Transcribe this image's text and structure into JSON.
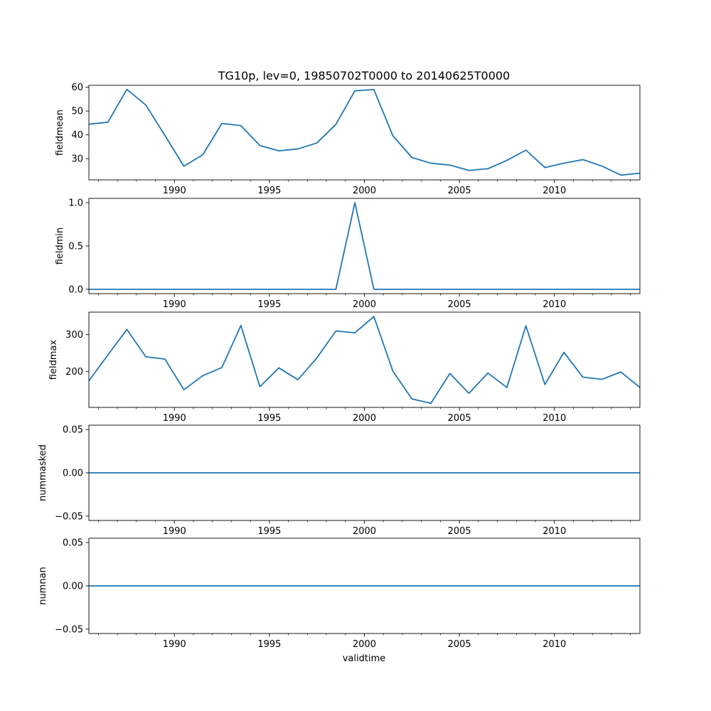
{
  "title": "TG10p, lev=0, 19850702T0000 to 20140625T0000",
  "xlabel": "validtime",
  "line_color": "#1f77b4",
  "chart_data": {
    "type": "line",
    "x": [
      1985.5,
      1986.5,
      1987.5,
      1988.5,
      1989.5,
      1990.5,
      1991.5,
      1992.5,
      1993.5,
      1994.5,
      1995.5,
      1996.5,
      1997.5,
      1998.5,
      1999.5,
      2000.5,
      2001.5,
      2002.5,
      2003.5,
      2004.5,
      2005.5,
      2006.5,
      2007.5,
      2008.5,
      2009.5,
      2010.5,
      2011.5,
      2012.5,
      2013.5,
      2014.5
    ],
    "xlim": [
      1985.5,
      2014.5
    ],
    "xticks": [
      1990,
      1995,
      2000,
      2005,
      2010
    ],
    "xtick_labels": [
      "1990",
      "1995",
      "2000",
      "2005",
      "2010"
    ],
    "panels": [
      {
        "name": "fieldmean",
        "ylabel": "fieldmean",
        "ylim": [
          21.1,
          60.8
        ],
        "yticks": [
          30,
          40,
          50,
          60
        ],
        "ytick_labels": [
          "30",
          "40",
          "50",
          "60"
        ],
        "values": [
          44.5,
          45.3,
          59.1,
          52.5,
          39.8,
          26.8,
          31.7,
          44.8,
          43.9,
          35.5,
          33.3,
          34.1,
          36.6,
          44.4,
          58.5,
          59.0,
          39.6,
          30.5,
          28.1,
          27.3,
          25.1,
          25.8,
          29.3,
          33.6,
          26.3,
          28.1,
          29.6,
          26.9,
          23.1,
          23.9
        ]
      },
      {
        "name": "fieldmin",
        "ylabel": "fieldmin",
        "ylim": [
          -0.05,
          1.05
        ],
        "yticks": [
          0.0,
          0.5,
          1.0
        ],
        "ytick_labels": [
          "0.0",
          "0.5",
          "1.0"
        ],
        "values": [
          0,
          0,
          0,
          0,
          0,
          0,
          0,
          0,
          0,
          0,
          0,
          0,
          0,
          0,
          1.0,
          0,
          0,
          0,
          0,
          0,
          0,
          0,
          0,
          0,
          0,
          0,
          0,
          0,
          0,
          0
        ]
      },
      {
        "name": "fieldmax",
        "ylabel": "fieldmax",
        "ylim": [
          103,
          361
        ],
        "yticks": [
          200,
          300
        ],
        "ytick_labels": [
          "200",
          "300"
        ],
        "values": [
          175,
          245,
          314,
          240,
          234,
          151,
          189,
          211,
          325,
          159,
          210,
          178,
          237,
          310,
          305,
          349,
          201,
          126,
          114,
          195,
          141,
          196,
          157,
          324,
          165,
          252,
          185,
          179,
          199,
          157
        ]
      },
      {
        "name": "nummasked",
        "ylabel": "nummasked",
        "ylim": [
          -0.055,
          0.055
        ],
        "yticks": [
          -0.05,
          0.0,
          0.05
        ],
        "ytick_labels": [
          "−0.05",
          "0.00",
          "0.05"
        ],
        "values": [
          0,
          0,
          0,
          0,
          0,
          0,
          0,
          0,
          0,
          0,
          0,
          0,
          0,
          0,
          0,
          0,
          0,
          0,
          0,
          0,
          0,
          0,
          0,
          0,
          0,
          0,
          0,
          0,
          0,
          0
        ]
      },
      {
        "name": "numnan",
        "ylabel": "numnan",
        "ylim": [
          -0.055,
          0.055
        ],
        "yticks": [
          -0.05,
          0.0,
          0.05
        ],
        "ytick_labels": [
          "−0.05",
          "0.00",
          "0.05"
        ],
        "values": [
          0,
          0,
          0,
          0,
          0,
          0,
          0,
          0,
          0,
          0,
          0,
          0,
          0,
          0,
          0,
          0,
          0,
          0,
          0,
          0,
          0,
          0,
          0,
          0,
          0,
          0,
          0,
          0,
          0,
          0
        ]
      }
    ]
  }
}
